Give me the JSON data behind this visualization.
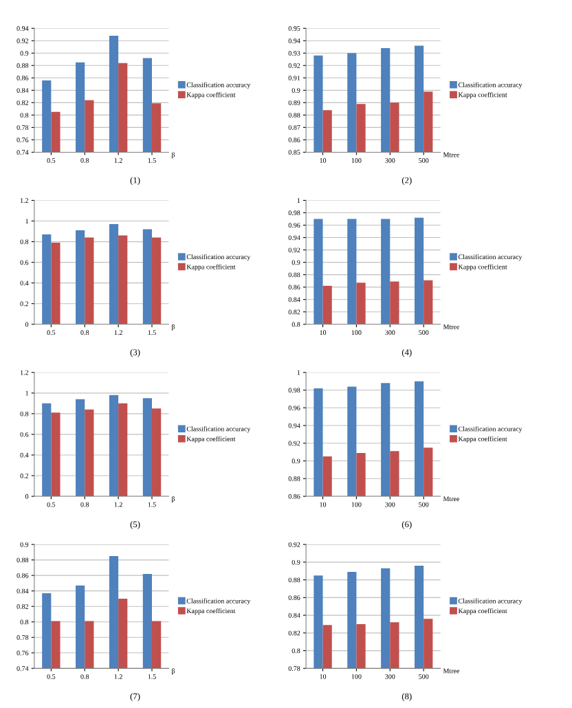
{
  "chart_data": [
    {
      "type": "bar",
      "categories": [
        "0.5",
        "0.8",
        "1.2",
        "1.5"
      ],
      "xlabel": "β",
      "annotations": [
        "(1)"
      ],
      "ylim": [
        0.74,
        0.94
      ],
      "yticks": [
        0.74,
        0.76,
        0.78,
        0.8,
        0.82,
        0.84,
        0.86,
        0.88,
        0.9,
        0.92,
        0.94
      ],
      "grid": "y",
      "legend": "right",
      "series": [
        {
          "name": "Classification accuracy",
          "color": "#4f81bd",
          "values": [
            0.856,
            0.885,
            0.928,
            0.892
          ]
        },
        {
          "name": "Kappa coefficient",
          "color": "#c0504d",
          "values": [
            0.805,
            0.824,
            0.884,
            0.819
          ]
        }
      ]
    },
    {
      "type": "bar",
      "categories": [
        "10",
        "100",
        "300",
        "500"
      ],
      "xlabel": "Mtree",
      "annotations": [
        "(2)"
      ],
      "ylim": [
        0.85,
        0.95
      ],
      "yticks": [
        0.85,
        0.86,
        0.87,
        0.88,
        0.89,
        0.9,
        0.91,
        0.92,
        0.93,
        0.94,
        0.95
      ],
      "grid": "y",
      "legend": "right",
      "series": [
        {
          "name": "Classification accuracy",
          "color": "#4f81bd",
          "values": [
            0.928,
            0.93,
            0.934,
            0.936
          ]
        },
        {
          "name": "Kappa coefficient",
          "color": "#c0504d",
          "values": [
            0.884,
            0.889,
            0.89,
            0.899
          ]
        }
      ]
    },
    {
      "type": "bar",
      "categories": [
        "0.5",
        "0.8",
        "1.2",
        "1.5"
      ],
      "xlabel": "β",
      "annotations": [
        "(3)"
      ],
      "ylim": [
        0,
        1.2
      ],
      "yticks": [
        0,
        0.2,
        0.4,
        0.6,
        0.8,
        1,
        1.2
      ],
      "grid": "y",
      "legend": "right",
      "series": [
        {
          "name": "Classification accuracy",
          "color": "#4f81bd",
          "values": [
            0.87,
            0.91,
            0.97,
            0.92
          ]
        },
        {
          "name": "Kappa coefficient",
          "color": "#c0504d",
          "values": [
            0.79,
            0.84,
            0.86,
            0.84
          ]
        }
      ]
    },
    {
      "type": "bar",
      "categories": [
        "10",
        "100",
        "300",
        "500"
      ],
      "xlabel": "Mtree",
      "annotations": [
        "(4)"
      ],
      "ylim": [
        0.8,
        1
      ],
      "yticks": [
        0.8,
        0.82,
        0.84,
        0.86,
        0.88,
        0.9,
        0.92,
        0.94,
        0.96,
        0.98,
        1
      ],
      "grid": "y",
      "legend": "right",
      "series": [
        {
          "name": "Classification accuracy",
          "color": "#4f81bd",
          "values": [
            0.97,
            0.97,
            0.97,
            0.972
          ]
        },
        {
          "name": "Kappa coefficient",
          "color": "#c0504d",
          "values": [
            0.862,
            0.867,
            0.869,
            0.871
          ]
        }
      ]
    },
    {
      "type": "bar",
      "categories": [
        "0.5",
        "0.8",
        "1.2",
        "1.5"
      ],
      "xlabel": "β",
      "annotations": [
        "(5)"
      ],
      "ylim": [
        0,
        1.2
      ],
      "yticks": [
        0,
        0.2,
        0.4,
        0.6,
        0.8,
        1,
        1.2
      ],
      "grid": "y",
      "legend": "right",
      "series": [
        {
          "name": "Classification accuracy",
          "color": "#4f81bd",
          "values": [
            0.9,
            0.94,
            0.98,
            0.95
          ]
        },
        {
          "name": "Kappa coefficient",
          "color": "#c0504d",
          "values": [
            0.81,
            0.84,
            0.9,
            0.85
          ]
        }
      ]
    },
    {
      "type": "bar",
      "categories": [
        "10",
        "100",
        "300",
        "500"
      ],
      "xlabel": "Mtree",
      "annotations": [
        "(6)"
      ],
      "ylim": [
        0.86,
        1
      ],
      "yticks": [
        0.86,
        0.88,
        0.9,
        0.92,
        0.94,
        0.96,
        0.98,
        1
      ],
      "grid": "y",
      "legend": "right",
      "series": [
        {
          "name": "Classification accuracy",
          "color": "#4f81bd",
          "values": [
            0.982,
            0.984,
            0.988,
            0.99
          ]
        },
        {
          "name": "Kappa coefficient",
          "color": "#c0504d",
          "values": [
            0.905,
            0.909,
            0.911,
            0.915
          ]
        }
      ]
    },
    {
      "type": "bar",
      "categories": [
        "0.5",
        "0.8",
        "1.2",
        "1.5"
      ],
      "xlabel": "β",
      "annotations": [
        "(7)"
      ],
      "ylim": [
        0.74,
        0.9
      ],
      "yticks": [
        0.74,
        0.76,
        0.78,
        0.8,
        0.82,
        0.84,
        0.86,
        0.88,
        0.9
      ],
      "grid": "y",
      "legend": "right",
      "series": [
        {
          "name": "Classification accuracy",
          "color": "#4f81bd",
          "values": [
            0.837,
            0.847,
            0.885,
            0.862
          ]
        },
        {
          "name": "Kappa coefficient",
          "color": "#c0504d",
          "values": [
            0.801,
            0.801,
            0.83,
            0.801
          ]
        }
      ]
    },
    {
      "type": "bar",
      "categories": [
        "10",
        "100",
        "300",
        "500"
      ],
      "xlabel": "Mtree",
      "annotations": [
        "(8)"
      ],
      "ylim": [
        0.78,
        0.92
      ],
      "yticks": [
        0.78,
        0.8,
        0.82,
        0.84,
        0.86,
        0.88,
        0.9,
        0.92
      ],
      "grid": "y",
      "legend": "right",
      "series": [
        {
          "name": "Classification accuracy",
          "color": "#4f81bd",
          "values": [
            0.885,
            0.889,
            0.893,
            0.896
          ]
        },
        {
          "name": "Kappa coefficient",
          "color": "#c0504d",
          "values": [
            0.829,
            0.83,
            0.832,
            0.836
          ]
        }
      ]
    }
  ]
}
